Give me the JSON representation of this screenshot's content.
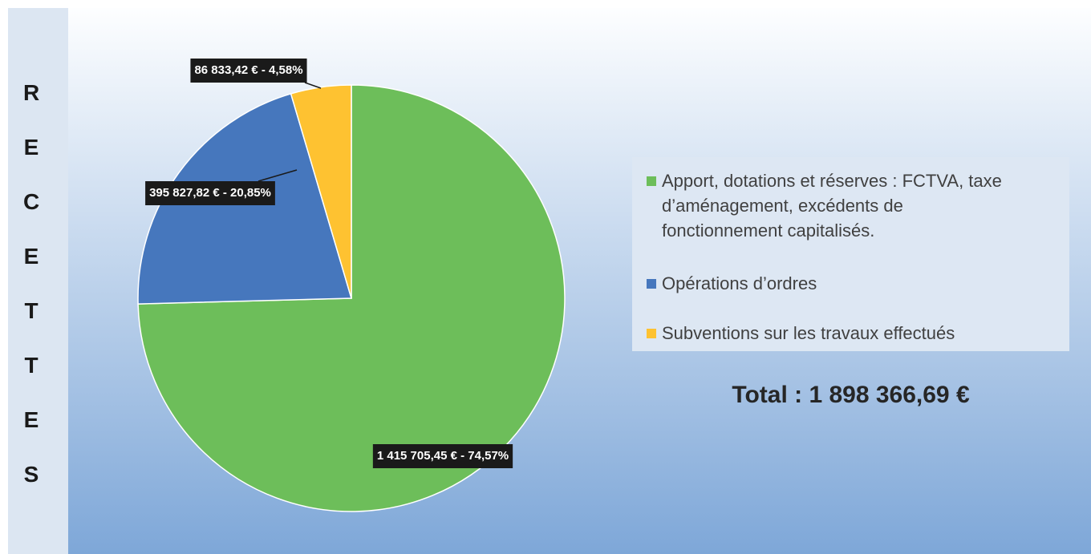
{
  "chart_data": {
    "type": "pie",
    "side_label": "RECETTES",
    "categories": [
      "Apport, dotations et réserves : FCTVA, taxe d’aménagement, excédents de fonctionnement capitalisés.",
      "Opérations d’ordres",
      "Subventions sur les travaux effectués"
    ],
    "values": [
      1415705.45,
      395827.82,
      86833.42
    ],
    "value_labels": [
      "1 415 705,45 € - 74,57%",
      "395 827,82 € - 20,85%",
      "86 833,42 € - 4,58%"
    ],
    "colors": [
      "#6dbe5a",
      "#4677bd",
      "#fec231"
    ],
    "total_label": "Total : 1 898 366,69 €"
  }
}
